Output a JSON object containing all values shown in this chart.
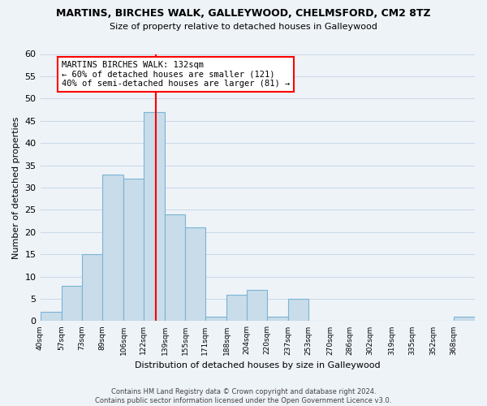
{
  "title": "MARTINS, BIRCHES WALK, GALLEYWOOD, CHELMSFORD, CM2 8TZ",
  "subtitle": "Size of property relative to detached houses in Galleywood",
  "xlabel": "Distribution of detached houses by size in Galleywood",
  "ylabel": "Number of detached properties",
  "bin_labels": [
    "40sqm",
    "57sqm",
    "73sqm",
    "89sqm",
    "106sqm",
    "122sqm",
    "139sqm",
    "155sqm",
    "171sqm",
    "188sqm",
    "204sqm",
    "220sqm",
    "237sqm",
    "253sqm",
    "270sqm",
    "286sqm",
    "302sqm",
    "319sqm",
    "335sqm",
    "352sqm",
    "368sqm"
  ],
  "bin_edges": [
    40,
    57,
    73,
    89,
    106,
    122,
    139,
    155,
    171,
    188,
    204,
    220,
    237,
    253,
    270,
    286,
    302,
    319,
    335,
    352,
    368,
    385
  ],
  "bar_heights": [
    2,
    8,
    15,
    33,
    32,
    47,
    24,
    21,
    1,
    6,
    7,
    1,
    5,
    0,
    0,
    0,
    0,
    0,
    0,
    0,
    1
  ],
  "bar_color": "#c9dcea",
  "bar_edge_color": "#7ab4d4",
  "vline_x": 132,
  "vline_color": "red",
  "annotation_text": "MARTINS BIRCHES WALK: 132sqm\n← 60% of detached houses are smaller (121)\n40% of semi-detached houses are larger (81) →",
  "annotation_box_facecolor": "white",
  "annotation_box_edgecolor": "red",
  "ylim": [
    0,
    60
  ],
  "yticks": [
    0,
    5,
    10,
    15,
    20,
    25,
    30,
    35,
    40,
    45,
    50,
    55,
    60
  ],
  "grid_color": "#c8d8e8",
  "footer_line1": "Contains HM Land Registry data © Crown copyright and database right 2024.",
  "footer_line2": "Contains public sector information licensed under the Open Government Licence v3.0.",
  "bg_color": "#eef3f8"
}
